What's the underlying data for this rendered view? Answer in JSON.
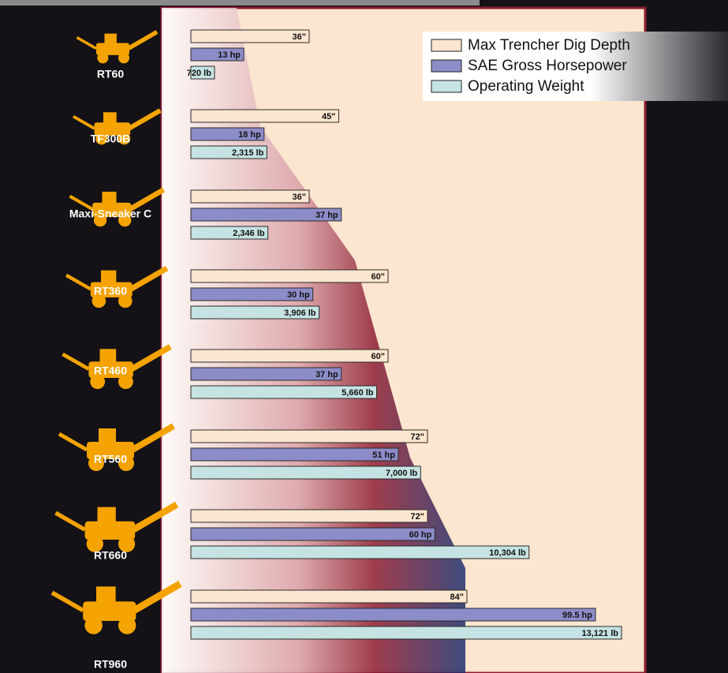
{
  "chart_data": {
    "type": "bar",
    "orientation": "horizontal",
    "categories": [
      "RT60",
      "TF300B",
      "Maxi-Sneaker C",
      "RT360",
      "RT460",
      "RT560",
      "RT660",
      "RT960"
    ],
    "series": [
      {
        "name": "Max Trencher Dig Depth",
        "color": "#fde6cf",
        "values": [
          36,
          45,
          36,
          60,
          60,
          72,
          72,
          84
        ],
        "value_labels": [
          "36\"",
          "45\"",
          "36\"",
          "60\"",
          "60\"",
          "72\"",
          "72\"",
          "84\""
        ]
      },
      {
        "name": "SAE Gross Horsepower",
        "color": "#8c8cc8",
        "values": [
          13,
          18,
          37,
          30,
          37,
          51,
          60,
          99.5
        ],
        "value_labels": [
          "13 hp",
          "18 hp",
          "37 hp",
          "30 hp",
          "37 hp",
          "51 hp",
          "60 hp",
          "99.5 hp"
        ]
      },
      {
        "name": "Operating Weight",
        "color": "#c6e3e3",
        "values": [
          720,
          2315,
          2346,
          3906,
          5660,
          7000,
          10304,
          13121
        ],
        "value_labels": [
          "720 lb",
          "2,315 lb",
          "2,346 lb",
          "3,906 lb",
          "5,660 lb",
          "7,000 lb",
          "10,304 lb",
          "13,121 lb"
        ]
      }
    ]
  }
}
